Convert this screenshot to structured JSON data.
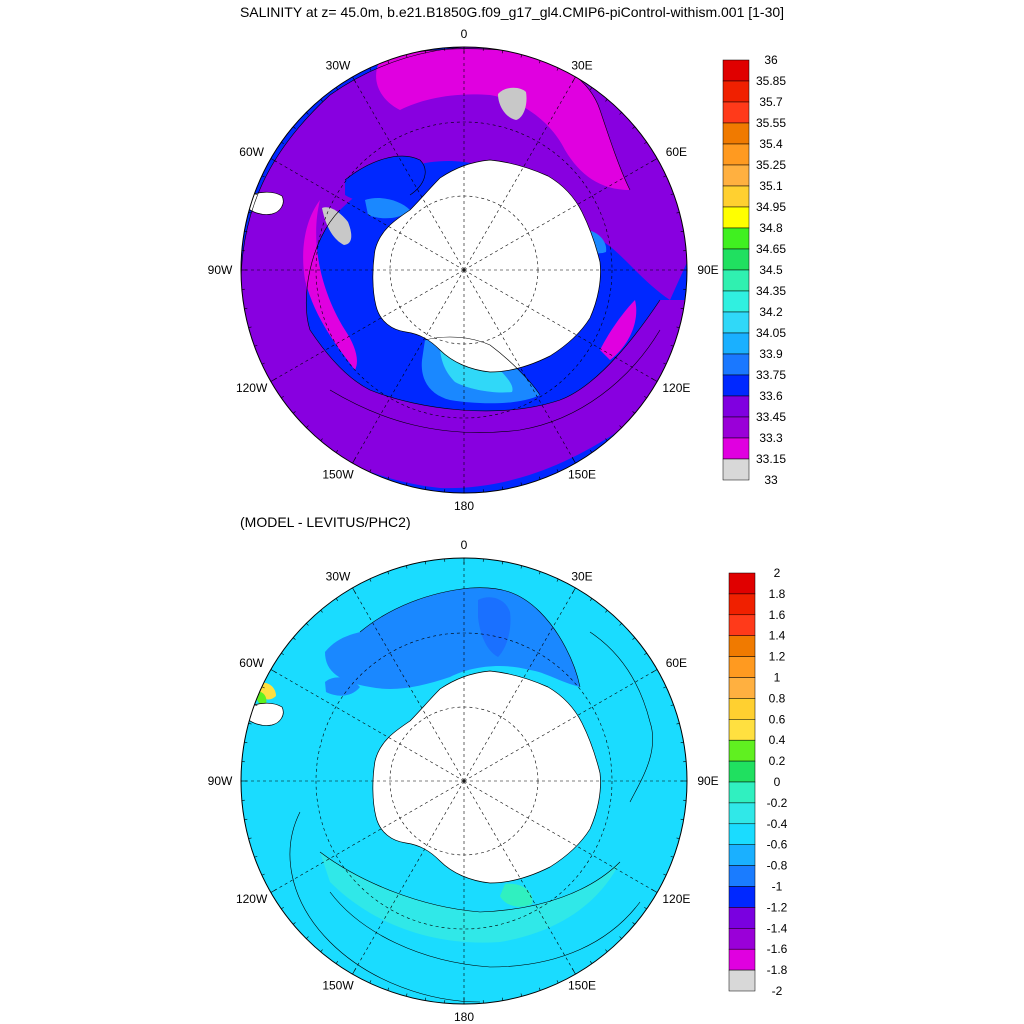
{
  "titles": {
    "main": "SALINITY at z=  45.0m, b.e21.B1850G.f09_g17_gl4.CMIP6-piControl-withism.001 [1-30]",
    "sub": "(MODEL - LEVITUS/PHC2)"
  },
  "longitude_labels": [
    "0",
    "30E",
    "60E",
    "90E",
    "120E",
    "150E",
    "180",
    "150W",
    "120W",
    "90W",
    "60W",
    "30W"
  ],
  "maps": [
    {
      "variable": "salinity",
      "colorbar": {
        "labels": [
          "36",
          "35.85",
          "35.7",
          "35.55",
          "35.4",
          "35.25",
          "35.1",
          "34.95",
          "34.8",
          "34.65",
          "34.5",
          "34.35",
          "34.2",
          "34.05",
          "33.9",
          "33.75",
          "33.6",
          "33.45",
          "33.3",
          "33.15",
          "33"
        ],
        "colors": [
          "#c00000",
          "#e00000",
          "#f02000",
          "#ff3a1a",
          "#f07a00",
          "#ff9a20",
          "#ffb040",
          "#ffd030",
          "#ffff00",
          "#40f020",
          "#20e060",
          "#30f0b0",
          "#30f0e0",
          "#30d8f8",
          "#1ab0ff",
          "#1a78ff",
          "#0028ff",
          "#8000e0",
          "#9a00d8",
          "#e000e0",
          "#d8d8d8",
          "#bbbbbb",
          "#707070"
        ]
      }
    },
    {
      "variable": "difference",
      "colorbar": {
        "labels": [
          "2",
          "1.8",
          "1.6",
          "1.4",
          "1.2",
          "1",
          "0.8",
          "0.6",
          "0.4",
          "0.2",
          "0",
          "-0.2",
          "-0.4",
          "-0.6",
          "-0.8",
          "-1",
          "-1.2",
          "-1.4",
          "-1.6",
          "-1.8",
          "-2"
        ],
        "colors": [
          "#c00000",
          "#e00000",
          "#f02000",
          "#ff3a1a",
          "#f07a00",
          "#ff9a20",
          "#ffb040",
          "#ffd030",
          "#ffe040",
          "#60f020",
          "#20e060",
          "#30f0c0",
          "#30e8e8",
          "#1adcff",
          "#1ab0ff",
          "#1a7cff",
          "#0028ff",
          "#7a00e0",
          "#9a00d8",
          "#e000e0",
          "#d8d8d8",
          "#707070"
        ]
      }
    }
  ]
}
